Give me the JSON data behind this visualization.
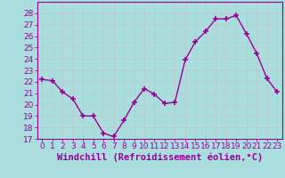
{
  "x": [
    0,
    1,
    2,
    3,
    4,
    5,
    6,
    7,
    8,
    9,
    10,
    11,
    12,
    13,
    14,
    15,
    16,
    17,
    18,
    19,
    20,
    21,
    22,
    23
  ],
  "y": [
    22.2,
    22.1,
    21.1,
    20.5,
    19.0,
    19.0,
    17.5,
    17.2,
    18.6,
    20.2,
    21.4,
    20.9,
    20.1,
    20.2,
    23.9,
    25.5,
    26.4,
    27.5,
    27.5,
    27.8,
    26.2,
    24.5,
    22.3,
    21.1
  ],
  "line_color": "#990099",
  "marker": "+",
  "marker_size": 5,
  "bg_color": "#aadddd",
  "grid_color": "#bbcccc",
  "xlabel": "Windchill (Refroidissement éolien,°C)",
  "xlabel_color": "#990099",
  "ylabel_color": "#990099",
  "ylim": [
    17,
    29
  ],
  "xlim": [
    -0.5,
    23.5
  ],
  "yticks": [
    17,
    18,
    19,
    20,
    21,
    22,
    23,
    24,
    25,
    26,
    27,
    28
  ],
  "xtick_labels": [
    "0",
    "1",
    "2",
    "3",
    "4",
    "5",
    "6",
    "7",
    "8",
    "9",
    "10",
    "11",
    "12",
    "13",
    "14",
    "15",
    "16",
    "17",
    "18",
    "19",
    "20",
    "21",
    "22",
    "23"
  ],
  "tick_fontsize": 6.5,
  "xlabel_fontsize": 7.5
}
